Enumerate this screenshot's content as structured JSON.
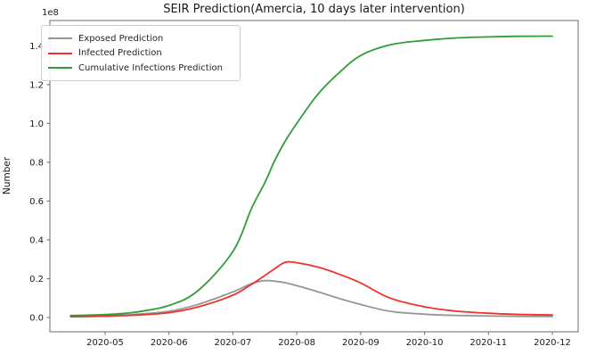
{
  "title": "SEIR Prediction(Amercia, 10 days later intervention)",
  "axes": {
    "ylabel": "Number",
    "offset_text": "1e8",
    "x_tick_labels": [
      "2020-05",
      "2020-06",
      "2020-07",
      "2020-08",
      "2020-09",
      "2020-10",
      "2020-11",
      "2020-12"
    ],
    "y_tick_labels": [
      "0.0",
      "0.2",
      "0.4",
      "0.6",
      "0.8",
      "1.0",
      "1.2",
      "1.4"
    ]
  },
  "legend": {
    "position": "upper left",
    "entries": [
      "Exposed Prediction",
      "Infected Prediction",
      "Cumulative Infections Prediction"
    ]
  },
  "colors": {
    "exposed": "#969696",
    "infected": "#f03129",
    "cumulative": "#2f9e38",
    "spine": "#6b6b6b",
    "text": "#1a1a1a"
  },
  "chart_data": {
    "type": "line",
    "title": "SEIR Prediction(Amercia, 10 days later intervention)",
    "xlabel": "",
    "ylabel": "Number",
    "y_unit_multiplier": "1e8",
    "grid": false,
    "legend_position": "upper left",
    "xlim": [
      "2020-04-05",
      "2020-12-13"
    ],
    "ylim_1e8": [
      -0.07,
      1.52
    ],
    "x": [
      "2020-04-15",
      "2020-05-01",
      "2020-05-15",
      "2020-06-01",
      "2020-06-15",
      "2020-07-01",
      "2020-07-10",
      "2020-07-16",
      "2020-07-21",
      "2020-07-26",
      "2020-08-01",
      "2020-08-11",
      "2020-08-21",
      "2020-09-01",
      "2020-09-15",
      "2020-10-01",
      "2020-10-15",
      "2020-11-01",
      "2020-11-15",
      "2020-12-01"
    ],
    "series": [
      {
        "name": "Exposed Prediction",
        "color": "#969696",
        "peak": {
          "date": "2020-07-16",
          "value_1e8": 0.19
        },
        "values_1e8": [
          0.005,
          0.009,
          0.016,
          0.032,
          0.068,
          0.132,
          0.175,
          0.19,
          0.187,
          0.179,
          0.164,
          0.133,
          0.099,
          0.067,
          0.032,
          0.017,
          0.011,
          0.008,
          0.006,
          0.005
        ]
      },
      {
        "name": "Infected Prediction",
        "color": "#f03129",
        "peak": {
          "date": "2020-07-26",
          "value_1e8": 0.285
        },
        "values_1e8": [
          0.004,
          0.007,
          0.012,
          0.025,
          0.055,
          0.115,
          0.172,
          0.215,
          0.252,
          0.285,
          0.282,
          0.26,
          0.224,
          0.178,
          0.1,
          0.055,
          0.034,
          0.022,
          0.016,
          0.013
        ]
      },
      {
        "name": "Cumulative Infections Prediction",
        "color": "#2f9e38",
        "plateau_value_1e8": 1.45,
        "values_1e8": [
          0.01,
          0.015,
          0.027,
          0.062,
          0.14,
          0.34,
          0.565,
          0.69,
          0.81,
          0.91,
          1.0,
          1.15,
          1.26,
          1.35,
          1.405,
          1.428,
          1.44,
          1.446,
          1.449,
          1.45
        ]
      }
    ]
  }
}
